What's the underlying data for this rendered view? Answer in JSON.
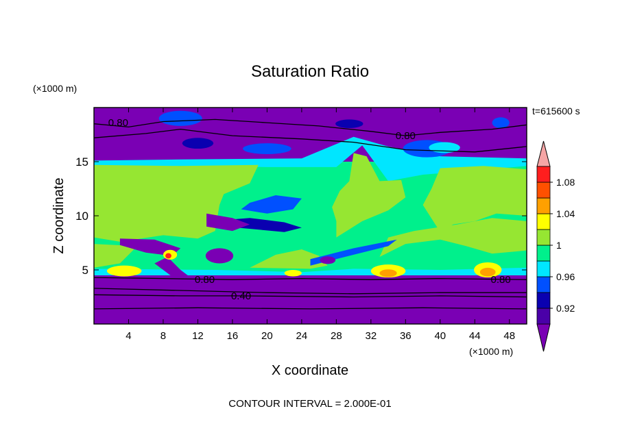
{
  "chart_data": {
    "type": "heatmap",
    "title": "Saturation Ratio",
    "xlabel": "X coordinate",
    "ylabel": "Z coordinate",
    "x_units": "(×1000 m)",
    "y_units": "(×1000 m)",
    "time_label": "t=615600 s",
    "footer": "CONTOUR INTERVAL = 2.000E-01",
    "xlim": [
      0,
      50
    ],
    "ylim": [
      0,
      20
    ],
    "x_ticks": [
      4,
      8,
      12,
      16,
      20,
      24,
      28,
      32,
      36,
      40,
      44,
      48
    ],
    "y_ticks": [
      5,
      10,
      15
    ],
    "colorbar": {
      "labels": [
        "0.92",
        "0.96",
        "1",
        "1.04",
        "1.08"
      ],
      "bins": [
        {
          "range": "below 0.90",
          "color": "#7a00b4"
        },
        {
          "range": "0.90-0.92",
          "color": "#4a00a8"
        },
        {
          "range": "0.92-0.94",
          "color": "#0a00b0"
        },
        {
          "range": "0.94-0.96",
          "color": "#0050ff"
        },
        {
          "range": "0.96-0.98",
          "color": "#00e6ff"
        },
        {
          "range": "0.98-1.00",
          "color": "#00f08c"
        },
        {
          "range": "1.00-1.02",
          "color": "#96e632"
        },
        {
          "range": "1.02-1.04",
          "color": "#ffff00"
        },
        {
          "range": "1.04-1.06",
          "color": "#ffa000"
        },
        {
          "range": "1.06-1.08",
          "color": "#ff5000"
        },
        {
          "range": "1.08-1.10",
          "color": "#ff1e1e"
        },
        {
          "range": "above 1.10",
          "color": "#f5a5a5"
        }
      ]
    },
    "contour_labels": [
      {
        "text": "0.80",
        "x": 2.8,
        "z": 18.6
      },
      {
        "text": "0.80",
        "x": 36.0,
        "z": 17.4
      },
      {
        "text": "0.80",
        "x": 12.8,
        "z": 4.1
      },
      {
        "text": "0.80",
        "x": 47.0,
        "z": 4.1
      },
      {
        "text": "0.40",
        "x": 17.0,
        "z": 2.6
      }
    ],
    "regions": [
      {
        "name": "upper-dry-layer",
        "x": [
          0,
          50
        ],
        "z": [
          15,
          20
        ],
        "bin": 0
      },
      {
        "name": "mid-moist-layer",
        "x": [
          0,
          50
        ],
        "z": [
          4.5,
          15
        ],
        "bin": 5
      },
      {
        "name": "lower-dry-layer",
        "x": [
          0,
          50
        ],
        "z": [
          0,
          4.4
        ],
        "bin": 0
      },
      {
        "name": "supersaturated-left",
        "x": [
          0,
          14.5
        ],
        "z": [
          7.6,
          14.8
        ],
        "bin": 6
      },
      {
        "name": "supersaturated-right",
        "x": [
          40,
          50
        ],
        "z": [
          8.5,
          14.8
        ],
        "bin": 6
      },
      {
        "name": "supersaturated-center",
        "x": [
          28,
          36
        ],
        "z": [
          8,
          13
        ],
        "bin": 6
      },
      {
        "name": "dry-intrusion-center",
        "x": [
          14,
          22
        ],
        "z": [
          9,
          12
        ],
        "bin": 2
      }
    ]
  }
}
